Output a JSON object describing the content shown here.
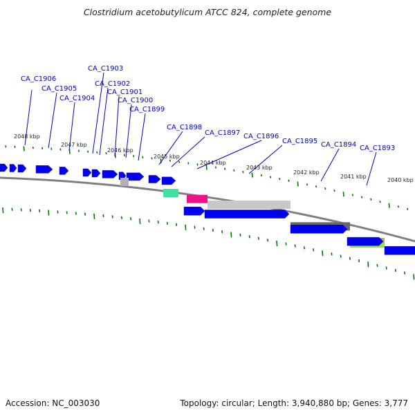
{
  "title": "Clostridium acetobutylicum ATCC 824, complete genome",
  "accession_label": "Accession: NC_003030",
  "topology_label": "Topology: circular; Length: 3,940,880 bp; Genes: 3,777",
  "colors": {
    "gene_arrow": "#0000ee",
    "backbone": "#808080",
    "tick": "#007700",
    "label": "#0000bb"
  },
  "kbp_labels": [
    "2048 kbp",
    "2047 kbp",
    "2046 kbp",
    "2045 kbp",
    "2044 kbp",
    "2043 kbp",
    "2042 kbp",
    "2041 kbp",
    "2040 kbp"
  ],
  "gene_labels": [
    "CA_C1906",
    "CA_C1905",
    "CA_C1904",
    "CA_C1903",
    "CA_C1902",
    "CA_C1901",
    "CA_C1900",
    "CA_C1899",
    "CA_C1898",
    "CA_C1897",
    "CA_C1896",
    "CA_C1895",
    "CA_C1894",
    "CA_C1893"
  ]
}
